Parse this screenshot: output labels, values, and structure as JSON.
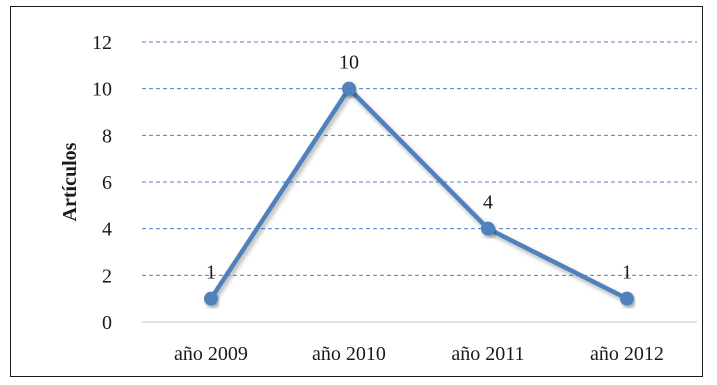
{
  "chart_data": {
    "type": "line",
    "categories": [
      "año 2009",
      "año 2010",
      "año 2011",
      "año 2012"
    ],
    "series": [
      {
        "values": [
          1,
          10,
          4,
          1
        ],
        "color": "#4f81bd"
      }
    ],
    "data_labels": [
      "1",
      "10",
      "4",
      "1"
    ],
    "title": "",
    "xlabel": "",
    "ylabel": "Artículos",
    "ylim": [
      0,
      12
    ],
    "yticks": [
      "0",
      "2",
      "4",
      "6",
      "8",
      "10",
      "12"
    ],
    "grid": "horizontal dashed",
    "legend": "none"
  }
}
